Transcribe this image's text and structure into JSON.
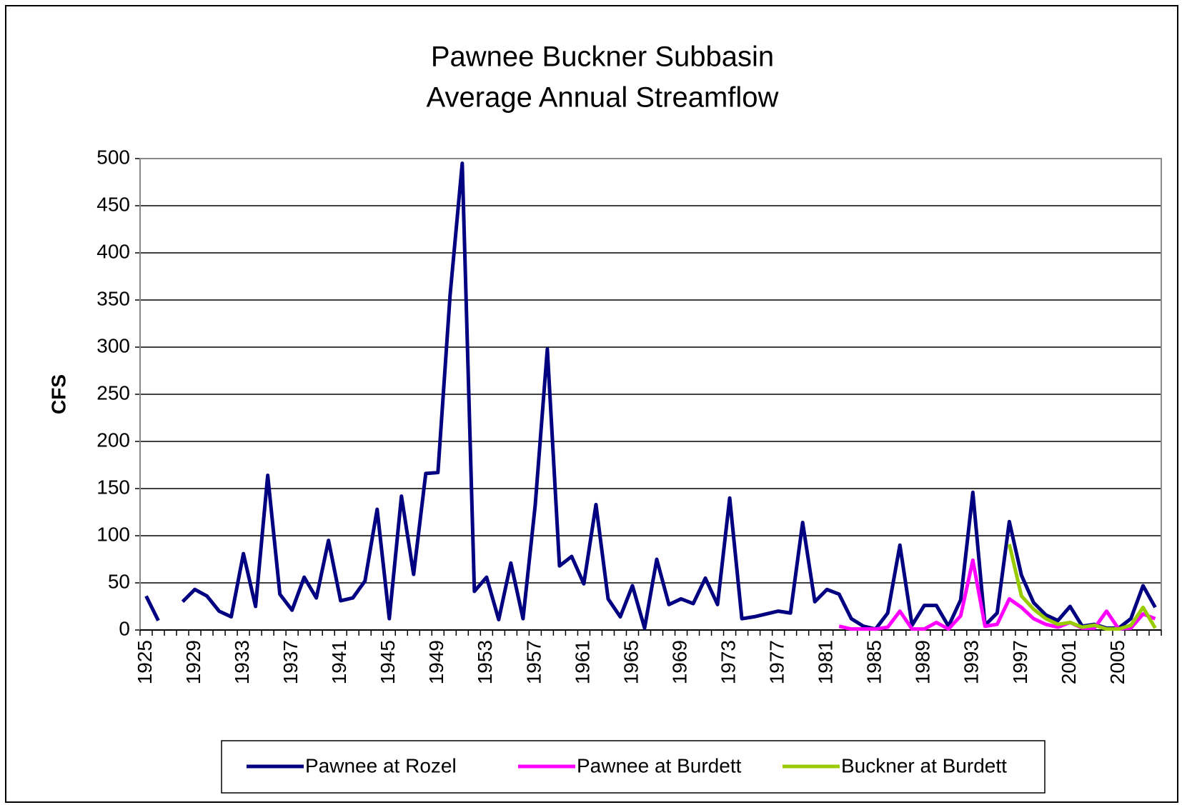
{
  "chart_data": {
    "type": "line",
    "title": "Pawnee Buckner Subbasin",
    "subtitle": "Average Annual Streamflow",
    "y_label": "CFS",
    "categories": [
      "1925",
      null,
      null,
      null,
      "1929",
      null,
      null,
      null,
      "1933",
      null,
      null,
      null,
      "1937",
      null,
      null,
      null,
      "1941",
      null,
      null,
      null,
      "1945",
      null,
      null,
      null,
      "1949",
      null,
      null,
      null,
      "1953",
      null,
      null,
      null,
      "1957",
      null,
      null,
      null,
      "1961",
      null,
      null,
      null,
      "1965",
      null,
      null,
      null,
      "1969",
      null,
      null,
      null,
      "1973",
      null,
      null,
      null,
      "1977",
      null,
      null,
      null,
      "1981",
      null,
      null,
      null,
      "1985",
      null,
      null,
      null,
      "1989",
      null,
      null,
      null,
      "1993",
      null,
      null,
      null,
      "1997",
      null,
      null,
      null,
      "2001",
      null,
      null,
      null,
      "2005",
      null,
      null,
      null
    ],
    "series": [
      {
        "name": "Pawnee at Rozel",
        "color": "#000080",
        "values": [
          36,
          10,
          null,
          30,
          43,
          36,
          20,
          14,
          81,
          25,
          164,
          38,
          21,
          56,
          34,
          95,
          31,
          34,
          52,
          128,
          12,
          142,
          59,
          166,
          167,
          355,
          495,
          41,
          56,
          11,
          71,
          12,
          132,
          298,
          68,
          78,
          49,
          133,
          33,
          14,
          47,
          2,
          75,
          27,
          33,
          28,
          55,
          27,
          140,
          12,
          14,
          17,
          20,
          18,
          114,
          30,
          43,
          38,
          12,
          4,
          1,
          18,
          90,
          5,
          26,
          26,
          4,
          32,
          146,
          5,
          18,
          115,
          58,
          29,
          16,
          10,
          25,
          4,
          6,
          2,
          2,
          12,
          47,
          24
        ]
      },
      {
        "name": "Pawnee at Burdett",
        "color": "#ff00ff",
        "values": [
          null,
          null,
          null,
          null,
          null,
          null,
          null,
          null,
          null,
          null,
          null,
          null,
          null,
          null,
          null,
          null,
          null,
          null,
          null,
          null,
          null,
          null,
          null,
          null,
          null,
          null,
          null,
          null,
          null,
          null,
          null,
          null,
          null,
          null,
          null,
          null,
          null,
          null,
          null,
          null,
          null,
          null,
          null,
          null,
          null,
          null,
          null,
          null,
          null,
          null,
          null,
          null,
          null,
          null,
          null,
          null,
          null,
          4,
          1,
          1,
          1,
          3,
          20,
          1,
          1,
          8,
          1,
          15,
          74,
          4,
          6,
          33,
          24,
          12,
          6,
          3,
          8,
          2,
          2,
          20,
          1,
          2,
          17,
          12
        ]
      },
      {
        "name": "Buckner at Burdett",
        "color": "#99cc00",
        "values": [
          null,
          null,
          null,
          null,
          null,
          null,
          null,
          null,
          null,
          null,
          null,
          null,
          null,
          null,
          null,
          null,
          null,
          null,
          null,
          null,
          null,
          null,
          null,
          null,
          null,
          null,
          null,
          null,
          null,
          null,
          null,
          null,
          null,
          null,
          null,
          null,
          null,
          null,
          null,
          null,
          null,
          null,
          null,
          null,
          null,
          null,
          null,
          null,
          null,
          null,
          null,
          null,
          null,
          null,
          null,
          null,
          null,
          null,
          null,
          null,
          null,
          null,
          null,
          null,
          null,
          null,
          null,
          null,
          null,
          null,
          null,
          91,
          36,
          22,
          12,
          6,
          8,
          3,
          5,
          1,
          1,
          5,
          24,
          2
        ]
      }
    ],
    "ylim": [
      0,
      500
    ],
    "yticks": [
      0,
      50,
      100,
      150,
      200,
      250,
      300,
      350,
      400,
      450,
      500
    ],
    "grid": true,
    "legend": "bottom"
  }
}
